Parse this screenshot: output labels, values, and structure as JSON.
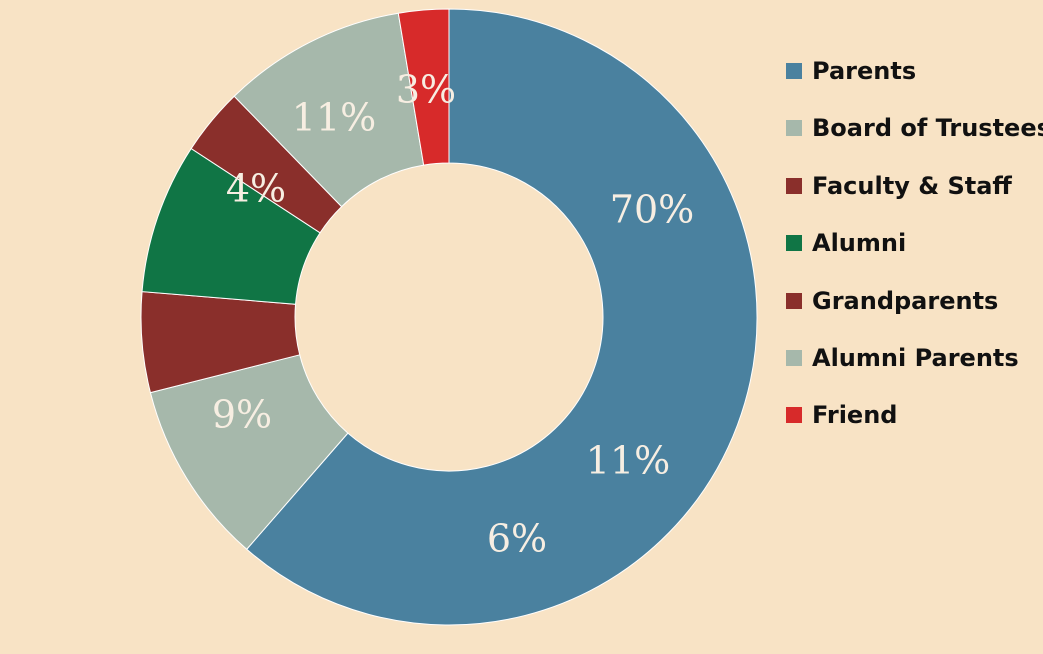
{
  "chart_data": {
    "type": "pie",
    "style": "donut",
    "title": "",
    "legend_position": "right",
    "slices": [
      {
        "label": "Parents",
        "value": 70,
        "value_label": "70%",
        "color": "#4a819f"
      },
      {
        "label": "Board of Trustees",
        "value": 11,
        "value_label": "11%",
        "color": "#a6b8ab"
      },
      {
        "label": "Faculty & Staff",
        "value": 6,
        "value_label": "6%",
        "color": "#8a2f2b"
      },
      {
        "label": "Alumni",
        "value": 9,
        "value_label": "9%",
        "color": "#107545"
      },
      {
        "label": "Grandparents",
        "value": 4,
        "value_label": "4%",
        "color": "#8a2f2b"
      },
      {
        "label": "Alumni Parents",
        "value": 11,
        "value_label": "11%",
        "color": "#a6b8ab"
      },
      {
        "label": "Friend",
        "value": 3,
        "value_label": "3%",
        "color": "#d72a2a"
      }
    ],
    "background": "#f8e3c5"
  }
}
